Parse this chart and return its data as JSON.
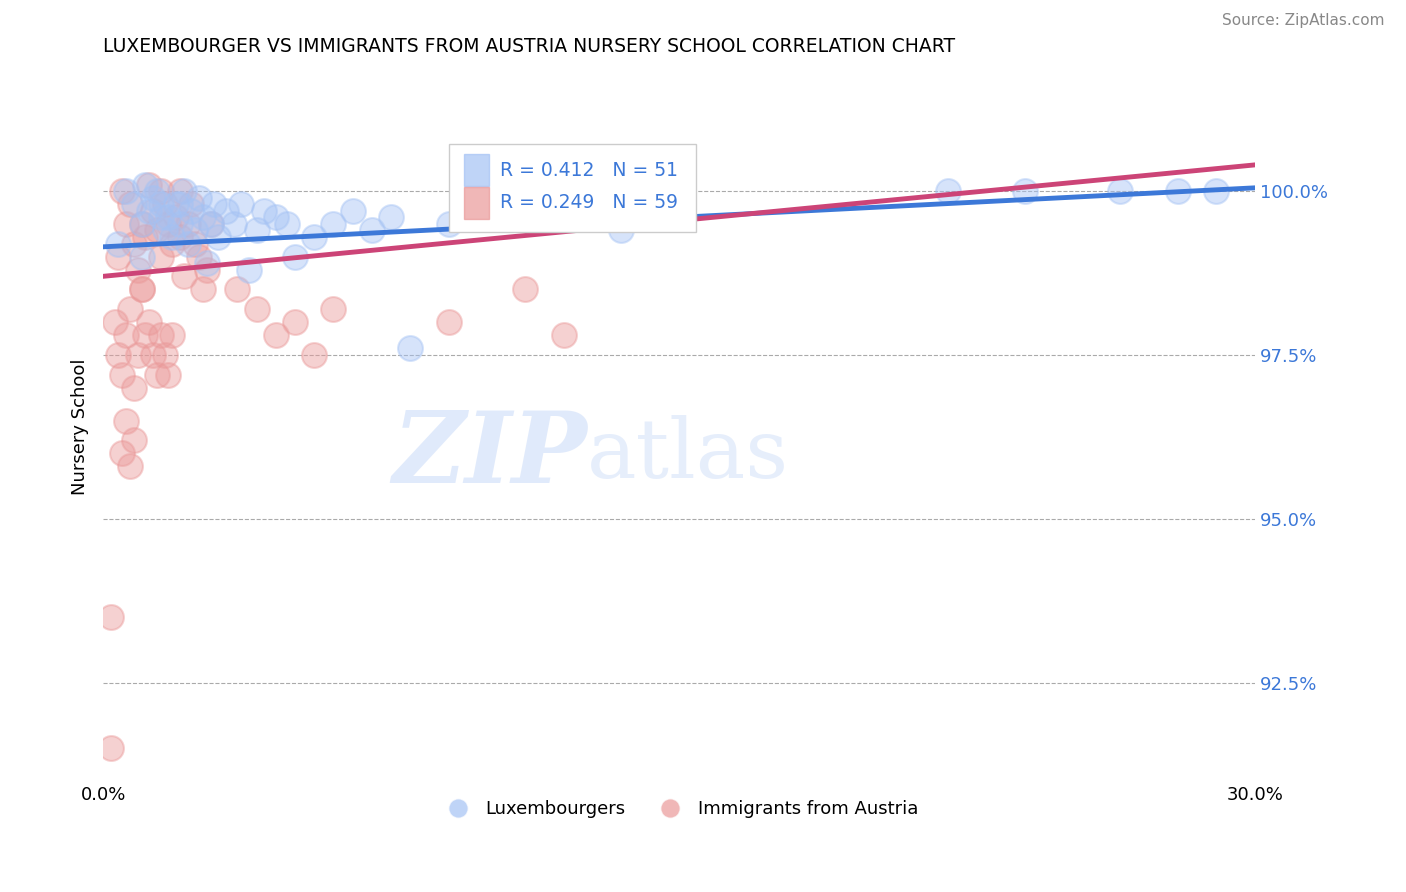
{
  "title": "LUXEMBOURGER VS IMMIGRANTS FROM AUSTRIA NURSERY SCHOOL CORRELATION CHART",
  "source": "Source: ZipAtlas.com",
  "ylabel": "Nursery School",
  "yticks": [
    100.0,
    97.5,
    95.0,
    92.5
  ],
  "ytick_labels": [
    "100.0%",
    "97.5%",
    "95.0%",
    "92.5%"
  ],
  "xlim": [
    0.0,
    30.0
  ],
  "ylim": [
    91.0,
    101.8
  ],
  "legend_blue_r": "R = 0.412",
  "legend_blue_n": "N = 51",
  "legend_pink_r": "R = 0.249",
  "legend_pink_n": "N = 59",
  "blue_color": "#a4c2f4",
  "pink_color": "#ea9999",
  "blue_line_color": "#3c78d8",
  "pink_line_color": "#cc4477",
  "watermark_zip": "ZIP",
  "watermark_atlas": "atlas",
  "legend_label_blue": "Luxembourgers",
  "legend_label_pink": "Immigrants from Austria",
  "blue_points_x": [
    0.4,
    0.6,
    0.8,
    1.0,
    1.1,
    1.2,
    1.3,
    1.4,
    1.5,
    1.6,
    1.7,
    1.8,
    1.9,
    2.0,
    2.1,
    2.2,
    2.3,
    2.4,
    2.5,
    2.6,
    2.7,
    2.8,
    2.9,
    3.0,
    3.2,
    3.4,
    3.6,
    3.8,
    4.0,
    4.2,
    4.5,
    4.8,
    5.0,
    5.5,
    6.0,
    6.5,
    7.0,
    7.5,
    8.0,
    9.0,
    10.0,
    11.5,
    13.5,
    22.0,
    24.0,
    26.5,
    28.0,
    29.0,
    1.0,
    1.5,
    2.0
  ],
  "blue_points_y": [
    99.2,
    100.0,
    99.8,
    99.5,
    100.1,
    99.7,
    99.9,
    100.0,
    99.8,
    99.4,
    99.6,
    99.3,
    99.8,
    99.5,
    100.0,
    99.2,
    99.7,
    99.4,
    99.9,
    99.6,
    98.9,
    99.5,
    99.8,
    99.3,
    99.7,
    99.5,
    99.8,
    98.8,
    99.4,
    99.7,
    99.6,
    99.5,
    99.0,
    99.3,
    99.5,
    99.7,
    99.4,
    99.6,
    97.6,
    99.5,
    99.8,
    99.6,
    99.4,
    100.0,
    100.0,
    100.0,
    100.0,
    100.0,
    99.0,
    99.6,
    99.8
  ],
  "pink_points_x": [
    0.2,
    0.4,
    0.5,
    0.6,
    0.7,
    0.8,
    0.9,
    1.0,
    1.0,
    1.1,
    1.2,
    1.3,
    1.4,
    1.5,
    1.5,
    1.6,
    1.7,
    1.8,
    1.9,
    2.0,
    2.0,
    2.1,
    2.2,
    2.3,
    2.4,
    2.5,
    2.6,
    2.7,
    2.8,
    0.3,
    0.4,
    0.5,
    0.6,
    0.7,
    0.8,
    0.9,
    1.0,
    1.1,
    1.2,
    1.3,
    1.4,
    1.5,
    1.6,
    1.7,
    1.8,
    3.5,
    4.0,
    4.5,
    5.0,
    5.5,
    6.0,
    9.0,
    11.0,
    12.0,
    0.5,
    0.6,
    0.7,
    0.8,
    0.2
  ],
  "pink_points_y": [
    91.5,
    99.0,
    100.0,
    99.5,
    99.8,
    99.2,
    98.8,
    99.5,
    98.5,
    99.3,
    100.1,
    99.7,
    99.4,
    100.0,
    99.0,
    99.8,
    99.5,
    99.2,
    99.6,
    100.0,
    99.3,
    98.7,
    99.5,
    99.8,
    99.2,
    99.0,
    98.5,
    98.8,
    99.5,
    98.0,
    97.5,
    97.2,
    97.8,
    98.2,
    97.0,
    97.5,
    98.5,
    97.8,
    98.0,
    97.5,
    97.2,
    97.8,
    97.5,
    97.2,
    97.8,
    98.5,
    98.2,
    97.8,
    98.0,
    97.5,
    98.2,
    98.0,
    98.5,
    97.8,
    96.0,
    96.5,
    95.8,
    96.2,
    93.5
  ]
}
